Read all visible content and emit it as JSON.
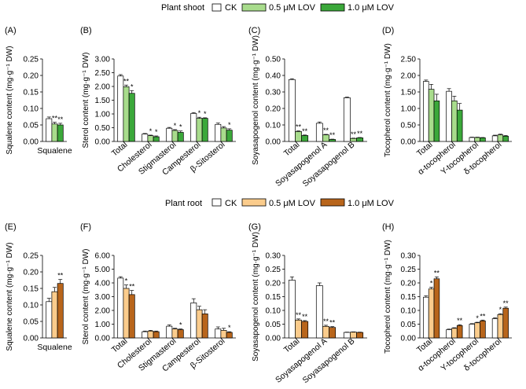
{
  "legend_top": {
    "title": "Plant shoot",
    "items": [
      {
        "label": "CK",
        "color": "#ffffff"
      },
      {
        "label": "0.5 μM LOV",
        "color": "#a8dc8c"
      },
      {
        "label": "1.0 μM LOV",
        "color": "#3ba83a"
      }
    ]
  },
  "legend_bottom": {
    "title": "Plant root",
    "items": [
      {
        "label": "CK",
        "color": "#ffffff"
      },
      {
        "label": "0.5 μM LOV",
        "color": "#fbcc8c"
      },
      {
        "label": "1.0 μM LOV",
        "color": "#b8651b"
      }
    ]
  },
  "chart_data": [
    {
      "id": "A",
      "type": "bar",
      "panel_label": "(A)",
      "ylabel": "Squalene content (mg·g⁻¹ DW)",
      "ylim": [
        0,
        0.25
      ],
      "yticks": [
        "0.00",
        "0.05",
        "0.10",
        "0.15",
        "0.20",
        "0.25"
      ],
      "categories": [
        "Squalene"
      ],
      "series": [
        {
          "name": "CK",
          "values": [
            0.069
          ],
          "errors": [
            0.005
          ],
          "sig": [
            ""
          ]
        },
        {
          "name": "0.5 μM LOV",
          "values": [
            0.053
          ],
          "errors": [
            0.005
          ],
          "sig": [
            "**"
          ]
        },
        {
          "name": "1.0 μM LOV",
          "values": [
            0.05
          ],
          "errors": [
            0.005
          ],
          "sig": [
            "**"
          ]
        }
      ]
    },
    {
      "id": "B",
      "type": "bar",
      "panel_label": "(B)",
      "ylabel": "Sterol content (mg·g⁻¹ DW)",
      "ylim": [
        0,
        3.0
      ],
      "yticks": [
        "0.00",
        "0.50",
        "1.00",
        "1.50",
        "2.00",
        "2.50",
        "3.00"
      ],
      "categories": [
        "Total",
        "Cholesterol",
        "Stigmasterol",
        "Campesterol",
        "β-Sitosterol"
      ],
      "series": [
        {
          "name": "CK",
          "values": [
            2.38,
            0.27,
            0.48,
            1.02,
            0.62
          ],
          "errors": [
            0.05,
            0.02,
            0.03,
            0.03,
            0.05
          ],
          "sig": [
            "",
            "",
            "",
            "",
            ""
          ]
        },
        {
          "name": "0.5 μM LOV",
          "values": [
            1.99,
            0.21,
            0.4,
            0.84,
            0.49
          ],
          "errors": [
            0.06,
            0.02,
            0.03,
            0.04,
            0.05
          ],
          "sig": [
            "**",
            "*",
            "*",
            "*",
            ""
          ]
        },
        {
          "name": "1.0 μM LOV",
          "values": [
            1.75,
            0.17,
            0.33,
            0.84,
            0.41
          ],
          "errors": [
            0.1,
            0.03,
            0.05,
            0.02,
            0.05
          ],
          "sig": [
            "*",
            "*",
            "*",
            "*",
            "*"
          ]
        }
      ]
    },
    {
      "id": "C",
      "type": "bar",
      "panel_label": "(C)",
      "ylabel": "Soyasapogenol content (mg·g⁻¹ DW)",
      "ylim": [
        0,
        0.5
      ],
      "yticks": [
        "0.00",
        "0.10",
        "0.20",
        "0.30",
        "0.40",
        "0.50"
      ],
      "categories": [
        "Total",
        "Soyasapogenol A",
        "Soyasapogenol B"
      ],
      "series": [
        {
          "name": "CK",
          "values": [
            0.375,
            0.11,
            0.265
          ],
          "errors": [
            0.005,
            0.008,
            0.004
          ],
          "sig": [
            "",
            "",
            ""
          ]
        },
        {
          "name": "0.5 μM LOV",
          "values": [
            0.06,
            0.04,
            0.018
          ],
          "errors": [
            0.004,
            0.003,
            0.002
          ],
          "sig": [
            "**",
            "**",
            "**"
          ]
        },
        {
          "name": "1.0 μM LOV",
          "values": [
            0.036,
            0.012,
            0.022
          ],
          "errors": [
            0.003,
            0.002,
            0.002
          ],
          "sig": [
            "**",
            "**",
            "**"
          ]
        }
      ]
    },
    {
      "id": "D",
      "type": "bar",
      "panel_label": "(D)",
      "ylabel": "Tocopherol content (mg·g⁻¹ DW)",
      "ylim": [
        0,
        2.5
      ],
      "yticks": [
        "0.00",
        "0.50",
        "1.00",
        "1.50",
        "2.00",
        "2.50"
      ],
      "categories": [
        "Total",
        "α-tocopherol",
        "Y-tocopherol",
        "δ-tocopherol"
      ],
      "series": [
        {
          "name": "CK",
          "values": [
            1.82,
            1.52,
            0.12,
            0.17
          ],
          "errors": [
            0.04,
            0.08,
            0.01,
            0.02
          ],
          "sig": [
            "",
            "",
            "",
            ""
          ]
        },
        {
          "name": "0.5 μM LOV",
          "values": [
            1.58,
            1.23,
            0.12,
            0.2
          ],
          "errors": [
            0.15,
            0.14,
            0.01,
            0.02
          ],
          "sig": [
            "",
            "",
            "",
            ""
          ]
        },
        {
          "name": "1.0 μM LOV",
          "values": [
            1.23,
            0.95,
            0.11,
            0.16
          ],
          "errors": [
            0.2,
            0.2,
            0.01,
            0.02
          ],
          "sig": [
            "",
            "",
            "",
            ""
          ]
        }
      ]
    },
    {
      "id": "E",
      "type": "bar",
      "panel_label": "(E)",
      "ylabel": "Squalene content (mg·g⁻¹ DW)",
      "ylim": [
        0,
        0.25
      ],
      "yticks": [
        "0.00",
        "0.05",
        "0.10",
        "0.15",
        "0.20",
        "0.25"
      ],
      "categories": [
        "Squalene"
      ],
      "series": [
        {
          "name": "CK",
          "values": [
            0.11
          ],
          "errors": [
            0.01
          ],
          "sig": [
            ""
          ]
        },
        {
          "name": "0.5 μM LOV",
          "values": [
            0.14
          ],
          "errors": [
            0.013
          ],
          "sig": [
            ""
          ]
        },
        {
          "name": "1.0 μM LOV",
          "values": [
            0.165
          ],
          "errors": [
            0.012
          ],
          "sig": [
            "**"
          ]
        }
      ]
    },
    {
      "id": "F",
      "type": "bar",
      "panel_label": "(F)",
      "ylabel": "Sterol content (mg·g⁻¹ DW)",
      "ylim": [
        0,
        6.0
      ],
      "yticks": [
        "0.00",
        "1.00",
        "2.00",
        "3.00",
        "4.00",
        "5.00",
        "6.00"
      ],
      "categories": [
        "Total",
        "Cholesterol",
        "Stigmasterol",
        "Campesterol",
        "β-Sitosterol"
      ],
      "series": [
        {
          "name": "CK",
          "values": [
            4.35,
            0.45,
            0.85,
            2.55,
            0.65
          ],
          "errors": [
            0.1,
            0.05,
            0.1,
            0.3,
            0.15
          ],
          "sig": [
            "",
            "",
            "",
            "",
            ""
          ]
        },
        {
          "name": "0.5 μM LOV",
          "values": [
            3.6,
            0.5,
            0.65,
            2.05,
            0.55
          ],
          "errors": [
            0.25,
            0.05,
            0.05,
            0.25,
            0.15
          ],
          "sig": [
            "*",
            "",
            "",
            "",
            ""
          ]
        },
        {
          "name": "1.0 μM LOV",
          "values": [
            3.15,
            0.45,
            0.6,
            1.75,
            0.4
          ],
          "errors": [
            0.3,
            0.05,
            0.05,
            0.3,
            0.05
          ],
          "sig": [
            "**",
            "",
            "*",
            "",
            "*"
          ]
        }
      ]
    },
    {
      "id": "G",
      "type": "bar",
      "panel_label": "(G)",
      "ylabel": "Soyasapogenol content (mg·g⁻¹ DW)",
      "ylim": [
        0,
        0.3
      ],
      "yticks": [
        "0.00",
        "0.05",
        "0.10",
        "0.15",
        "0.20",
        "0.25",
        "0.30"
      ],
      "categories": [
        "Total",
        "Soyasapogenol A",
        "Soyasapogenol B"
      ],
      "series": [
        {
          "name": "CK",
          "values": [
            0.21,
            0.19,
            0.02
          ],
          "errors": [
            0.012,
            0.01,
            0.001
          ],
          "sig": [
            "",
            "",
            ""
          ]
        },
        {
          "name": "0.5 μM LOV",
          "values": [
            0.065,
            0.042,
            0.021
          ],
          "errors": [
            0.004,
            0.004,
            0.001
          ],
          "sig": [
            "**",
            "**",
            ""
          ]
        },
        {
          "name": "1.0 μM LOV",
          "values": [
            0.06,
            0.038,
            0.02
          ],
          "errors": [
            0.003,
            0.003,
            0.001
          ],
          "sig": [
            "**",
            "**",
            ""
          ]
        }
      ]
    },
    {
      "id": "H",
      "type": "bar",
      "panel_label": "(H)",
      "ylabel": "Tocopherol content (mg·g⁻¹ DW)",
      "ylim": [
        0,
        0.3
      ],
      "yticks": [
        "0.00",
        "0.05",
        "0.10",
        "0.15",
        "0.20",
        "0.25",
        "0.30"
      ],
      "categories": [
        "Total",
        "α-tocopherol",
        "Y-tocopherol",
        "δ-tocopherol"
      ],
      "series": [
        {
          "name": "CK",
          "values": [
            0.148,
            0.03,
            0.05,
            0.07
          ],
          "errors": [
            0.005,
            0.002,
            0.002,
            0.003
          ],
          "sig": [
            "",
            "",
            "",
            ""
          ]
        },
        {
          "name": "0.5 μM LOV",
          "values": [
            0.178,
            0.035,
            0.055,
            0.085
          ],
          "errors": [
            0.006,
            0.002,
            0.002,
            0.003
          ],
          "sig": [
            "*",
            "",
            "*",
            "*"
          ]
        },
        {
          "name": "1.0 μM LOV",
          "values": [
            0.215,
            0.045,
            0.062,
            0.108
          ],
          "errors": [
            0.007,
            0.003,
            0.003,
            0.004
          ],
          "sig": [
            "**",
            "**",
            "**",
            "**"
          ]
        }
      ]
    }
  ]
}
